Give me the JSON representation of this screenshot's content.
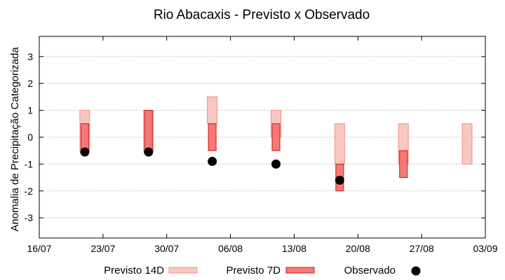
{
  "chart_data": {
    "type": "bar",
    "title": "Rio Abacaxis - Previsto x Observado",
    "ylabel": "Anomalia de Precipitação Categorizada",
    "xlabel": "",
    "ylim": [
      -3.75,
      3.75
    ],
    "yticks": [
      3,
      2,
      1,
      0,
      -1,
      -2,
      -3
    ],
    "xlim": [
      "2017-07-16",
      "2017-09-03"
    ],
    "xticks": [
      "16/07",
      "23/07",
      "30/07",
      "06/08",
      "13/08",
      "20/08",
      "27/08",
      "03/09"
    ],
    "grid": "horizontal dotted",
    "legend_position": "bottom",
    "series": [
      {
        "name": "Previsto 14D",
        "kind": "range",
        "color": "#f8c8c0",
        "edge": "#f09080",
        "points": [
          {
            "date": "2017-07-21",
            "low": -0.5,
            "high": 1.0
          },
          {
            "date": "2017-07-28",
            "low": -0.5,
            "high": 1.0
          },
          {
            "date": "2017-08-04",
            "low": 0.5,
            "high": 1.5
          },
          {
            "date": "2017-08-11",
            "low": 0.0,
            "high": 1.0
          },
          {
            "date": "2017-08-18",
            "low": -1.0,
            "high": 0.5
          },
          {
            "date": "2017-08-25",
            "low": -1.0,
            "high": 0.5
          },
          {
            "date": "2017-09-01",
            "low": -1.0,
            "high": 0.5
          }
        ]
      },
      {
        "name": "Previsto 7D",
        "kind": "range",
        "color": "#f87878",
        "edge": "#c81818",
        "points": [
          {
            "date": "2017-07-21",
            "low": -0.5,
            "high": 0.5
          },
          {
            "date": "2017-07-28",
            "low": -0.5,
            "high": 1.0
          },
          {
            "date": "2017-08-04",
            "low": -0.5,
            "high": 0.5
          },
          {
            "date": "2017-08-11",
            "low": -0.5,
            "high": 0.5
          },
          {
            "date": "2017-08-18",
            "low": -2.0,
            "high": -1.0
          },
          {
            "date": "2017-08-25",
            "low": -1.5,
            "high": -0.5
          }
        ]
      },
      {
        "name": "Observado",
        "kind": "points",
        "color": "#000000",
        "points": [
          {
            "date": "2017-07-21",
            "value": -0.55
          },
          {
            "date": "2017-07-28",
            "value": -0.55
          },
          {
            "date": "2017-08-04",
            "value": -0.9
          },
          {
            "date": "2017-08-11",
            "value": -1.0
          },
          {
            "date": "2017-08-18",
            "value": -1.6
          }
        ]
      }
    ]
  }
}
